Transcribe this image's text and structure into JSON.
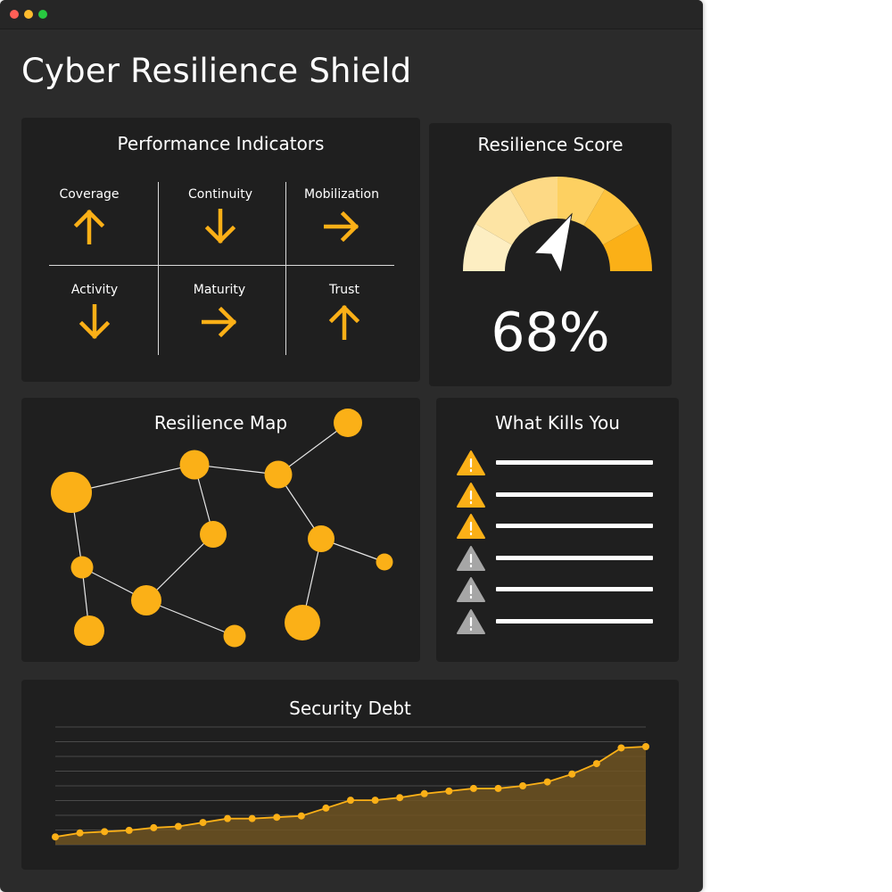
{
  "page_title": "Cyber Resilience Shield",
  "colors": {
    "accent": "#fbb017",
    "background": "#2b2b2b",
    "card": "#1f1f1f",
    "warning_muted": "#a6a6a6",
    "text": "#ffffff"
  },
  "performance": {
    "title": "Performance Indicators",
    "indicators": [
      {
        "label": "Coverage",
        "trend": "up",
        "icon": "arrow-up-icon"
      },
      {
        "label": "Continuity",
        "trend": "down",
        "icon": "arrow-down-icon"
      },
      {
        "label": "Mobilization",
        "trend": "right",
        "icon": "arrow-right-icon"
      },
      {
        "label": "Activity",
        "trend": "down",
        "icon": "arrow-down-icon"
      },
      {
        "label": "Maturity",
        "trend": "right",
        "icon": "arrow-right-icon"
      },
      {
        "label": "Trust",
        "trend": "up",
        "icon": "arrow-up-icon"
      }
    ]
  },
  "score": {
    "title": "Resilience Score",
    "value": "68%",
    "percent": 68,
    "gauge_colors": [
      "#fdeec2",
      "#fde4a4",
      "#fdd985",
      "#fdd061",
      "#fdc33e",
      "#fbb017"
    ],
    "needle_icon": "compass-needle-icon"
  },
  "map": {
    "title": "Resilience Map"
  },
  "risks": {
    "title": "What Kills You",
    "items": [
      {
        "severity": "high",
        "icon": "warning-icon"
      },
      {
        "severity": "high",
        "icon": "warning-icon"
      },
      {
        "severity": "high",
        "icon": "warning-icon"
      },
      {
        "severity": "low",
        "icon": "warning-icon"
      },
      {
        "severity": "low",
        "icon": "warning-icon"
      },
      {
        "severity": "low",
        "icon": "warning-icon"
      }
    ]
  },
  "chart_data": {
    "type": "area",
    "title": "Security Debt",
    "xlabel": "",
    "ylabel": "",
    "grid": true,
    "ylim": [
      0,
      9
    ],
    "x": [
      1,
      2,
      3,
      4,
      5,
      6,
      7,
      8,
      9,
      10,
      11,
      12,
      13,
      14,
      15,
      16,
      17,
      18,
      19,
      20,
      21,
      22,
      23,
      24,
      25
    ],
    "values": [
      0.6,
      0.9,
      1.0,
      1.1,
      1.3,
      1.4,
      1.7,
      2.0,
      2.0,
      2.1,
      2.2,
      2.8,
      3.4,
      3.4,
      3.6,
      3.9,
      4.1,
      4.3,
      4.3,
      4.5,
      4.8,
      5.4,
      6.2,
      7.4,
      7.5
    ]
  }
}
